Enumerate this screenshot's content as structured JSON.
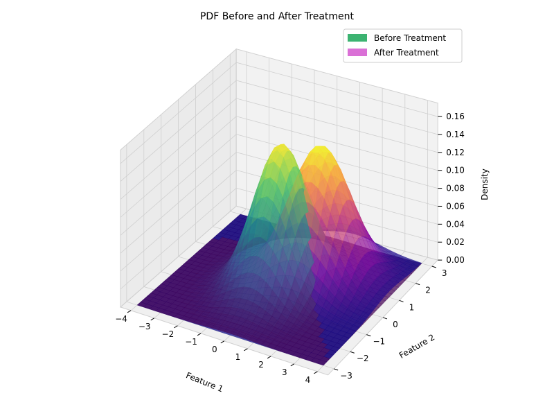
{
  "chart_data": {
    "type": "surface3d",
    "title": "PDF Before and After Treatment",
    "xlabel": "Feature 1",
    "ylabel": "Feature 2",
    "zlabel": "Density",
    "xlim": [
      -4,
      4
    ],
    "ylim": [
      -3,
      3
    ],
    "zlim": [
      0,
      0.17
    ],
    "x_ticks": [
      "−4",
      "−3",
      "−2",
      "−1",
      "0",
      "1",
      "2",
      "3",
      "4"
    ],
    "y_ticks": [
      "−3",
      "−2",
      "−1",
      "0",
      "1",
      "2",
      "3"
    ],
    "z_ticks": [
      "0.00",
      "0.02",
      "0.04",
      "0.06",
      "0.08",
      "0.10",
      "0.12",
      "0.14",
      "0.16"
    ],
    "grid": true,
    "legend_position": "top-right",
    "series": [
      {
        "name": "Before Treatment",
        "legend_color": "#3cb371",
        "colormap": "viridis",
        "distribution": "bivariate normal",
        "mean": [
          0,
          0
        ],
        "std": [
          1,
          1
        ],
        "peak_density": 0.159
      },
      {
        "name": "After Treatment",
        "legend_color": "#da70d6",
        "colormap": "plasma",
        "distribution": "bivariate normal",
        "mean": [
          1,
          1
        ],
        "std": [
          1.2,
          0.9
        ],
        "peak_density": 0.147
      }
    ]
  }
}
